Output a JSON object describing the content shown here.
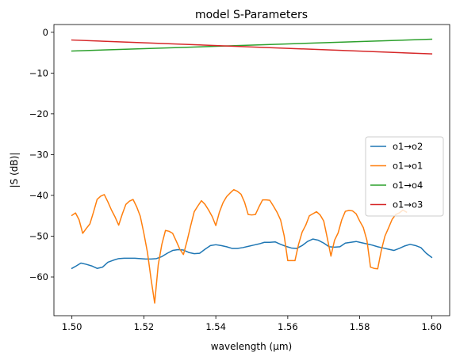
{
  "chart_data": {
    "type": "line",
    "title": "model S-Parameters",
    "xlabel": "wavelength (μm)",
    "ylabel": "|S (dB)|",
    "xlim": [
      1.495,
      1.605
    ],
    "ylim": [
      -69.5,
      1.9
    ],
    "xticks": [
      1.5,
      1.52,
      1.54,
      1.56,
      1.58,
      1.6
    ],
    "xtick_labels": [
      "1.50",
      "1.52",
      "1.54",
      "1.56",
      "1.58",
      "1.60"
    ],
    "yticks": [
      0,
      -10,
      -20,
      -30,
      -40,
      -50,
      -60
    ],
    "ytick_labels": [
      "0",
      "−10",
      "−20",
      "−30",
      "−40",
      "−50",
      "−60"
    ],
    "grid": false,
    "legend_position": "right",
    "series": [
      {
        "name": "o1→o2",
        "color": "#1f77b4",
        "points": [
          [
            1.5,
            -57.9
          ],
          [
            1.5012,
            -57.3
          ],
          [
            1.5025,
            -56.6
          ],
          [
            1.504,
            -56.9
          ],
          [
            1.5055,
            -57.3
          ],
          [
            1.507,
            -57.9
          ],
          [
            1.5085,
            -57.6
          ],
          [
            1.51,
            -56.4
          ],
          [
            1.5115,
            -55.9
          ],
          [
            1.513,
            -55.5
          ],
          [
            1.5145,
            -55.4
          ],
          [
            1.516,
            -55.4
          ],
          [
            1.5175,
            -55.4
          ],
          [
            1.519,
            -55.5
          ],
          [
            1.5205,
            -55.6
          ],
          [
            1.522,
            -55.6
          ],
          [
            1.5235,
            -55.5
          ],
          [
            1.525,
            -55.0
          ],
          [
            1.5265,
            -54.2
          ],
          [
            1.528,
            -53.5
          ],
          [
            1.5295,
            -53.3
          ],
          [
            1.531,
            -53.4
          ],
          [
            1.5325,
            -54.0
          ],
          [
            1.534,
            -54.3
          ],
          [
            1.5355,
            -54.2
          ],
          [
            1.537,
            -53.2
          ],
          [
            1.5385,
            -52.3
          ],
          [
            1.54,
            -52.1
          ],
          [
            1.5415,
            -52.3
          ],
          [
            1.543,
            -52.6
          ],
          [
            1.5445,
            -53.0
          ],
          [
            1.546,
            -53.0
          ],
          [
            1.5475,
            -52.8
          ],
          [
            1.549,
            -52.5
          ],
          [
            1.5505,
            -52.2
          ],
          [
            1.552,
            -51.9
          ],
          [
            1.5535,
            -51.5
          ],
          [
            1.555,
            -51.5
          ],
          [
            1.5565,
            -51.4
          ],
          [
            1.558,
            -52.0
          ],
          [
            1.5595,
            -52.5
          ],
          [
            1.561,
            -52.9
          ],
          [
            1.5625,
            -53.0
          ],
          [
            1.564,
            -52.3
          ],
          [
            1.5655,
            -51.3
          ],
          [
            1.567,
            -50.7
          ],
          [
            1.5685,
            -51.0
          ],
          [
            1.57,
            -51.7
          ],
          [
            1.5715,
            -52.6
          ],
          [
            1.573,
            -52.7
          ],
          [
            1.5745,
            -52.6
          ],
          [
            1.576,
            -51.7
          ],
          [
            1.5775,
            -51.5
          ],
          [
            1.579,
            -51.3
          ],
          [
            1.5805,
            -51.6
          ],
          [
            1.582,
            -51.9
          ],
          [
            1.5835,
            -52.2
          ],
          [
            1.585,
            -52.6
          ],
          [
            1.5865,
            -52.9
          ],
          [
            1.588,
            -53.2
          ],
          [
            1.5895,
            -53.5
          ],
          [
            1.591,
            -53.0
          ],
          [
            1.5925,
            -52.4
          ],
          [
            1.594,
            -52.0
          ],
          [
            1.5955,
            -52.3
          ],
          [
            1.597,
            -52.8
          ],
          [
            1.5985,
            -54.2
          ],
          [
            1.6,
            -55.2
          ]
        ]
      },
      {
        "name": "o1→o1",
        "color": "#ff7f0e",
        "points": [
          [
            1.5,
            -44.9
          ],
          [
            1.501,
            -44.3
          ],
          [
            1.502,
            -46.0
          ],
          [
            1.503,
            -49.3
          ],
          [
            1.504,
            -48.1
          ],
          [
            1.505,
            -47.0
          ],
          [
            1.506,
            -44.1
          ],
          [
            1.507,
            -41.0
          ],
          [
            1.508,
            -40.2
          ],
          [
            1.509,
            -39.8
          ],
          [
            1.51,
            -41.6
          ],
          [
            1.511,
            -43.6
          ],
          [
            1.512,
            -45.3
          ],
          [
            1.513,
            -47.3
          ],
          [
            1.514,
            -44.6
          ],
          [
            1.515,
            -42.2
          ],
          [
            1.516,
            -41.4
          ],
          [
            1.517,
            -41.0
          ],
          [
            1.518,
            -42.8
          ],
          [
            1.519,
            -45.1
          ],
          [
            1.52,
            -49.3
          ],
          [
            1.521,
            -54.0
          ],
          [
            1.522,
            -60.5
          ],
          [
            1.523,
            -66.4
          ],
          [
            1.524,
            -57.0
          ],
          [
            1.525,
            -52.0
          ],
          [
            1.526,
            -48.6
          ],
          [
            1.527,
            -48.8
          ],
          [
            1.528,
            -49.3
          ],
          [
            1.529,
            -51.2
          ],
          [
            1.53,
            -53.2
          ],
          [
            1.531,
            -54.5
          ],
          [
            1.532,
            -51.2
          ],
          [
            1.533,
            -47.5
          ],
          [
            1.534,
            -44.0
          ],
          [
            1.535,
            -42.6
          ],
          [
            1.536,
            -41.3
          ],
          [
            1.537,
            -42.2
          ],
          [
            1.538,
            -43.6
          ],
          [
            1.539,
            -45.2
          ],
          [
            1.54,
            -47.4
          ],
          [
            1.541,
            -44.1
          ],
          [
            1.542,
            -41.8
          ],
          [
            1.543,
            -40.3
          ],
          [
            1.544,
            -39.4
          ],
          [
            1.545,
            -38.6
          ],
          [
            1.546,
            -39.0
          ],
          [
            1.547,
            -39.7
          ],
          [
            1.548,
            -41.7
          ],
          [
            1.549,
            -44.7
          ],
          [
            1.55,
            -44.8
          ],
          [
            1.551,
            -44.7
          ],
          [
            1.552,
            -42.8
          ],
          [
            1.553,
            -41.1
          ],
          [
            1.554,
            -41.1
          ],
          [
            1.555,
            -41.2
          ],
          [
            1.556,
            -42.6
          ],
          [
            1.557,
            -44.1
          ],
          [
            1.558,
            -46.0
          ],
          [
            1.559,
            -49.9
          ],
          [
            1.56,
            -56.0
          ],
          [
            1.561,
            -56.0
          ],
          [
            1.562,
            -56.0
          ],
          [
            1.563,
            -52.0
          ],
          [
            1.564,
            -49.0
          ],
          [
            1.565,
            -47.3
          ],
          [
            1.566,
            -45.0
          ],
          [
            1.567,
            -44.5
          ],
          [
            1.568,
            -44.0
          ],
          [
            1.569,
            -44.8
          ],
          [
            1.57,
            -46.3
          ],
          [
            1.571,
            -50.5
          ],
          [
            1.572,
            -54.9
          ],
          [
            1.573,
            -51.0
          ],
          [
            1.574,
            -49.2
          ],
          [
            1.575,
            -46.0
          ],
          [
            1.576,
            -43.9
          ],
          [
            1.577,
            -43.7
          ],
          [
            1.578,
            -43.8
          ],
          [
            1.579,
            -44.5
          ],
          [
            1.58,
            -46.3
          ],
          [
            1.581,
            -47.9
          ],
          [
            1.582,
            -51.0
          ],
          [
            1.583,
            -57.6
          ],
          [
            1.584,
            -57.9
          ],
          [
            1.585,
            -58.0
          ],
          [
            1.586,
            -53.5
          ],
          [
            1.587,
            -50.0
          ],
          [
            1.588,
            -48.0
          ],
          [
            1.589,
            -45.9
          ],
          [
            1.59,
            -44.7
          ],
          [
            1.591,
            -44.3
          ],
          [
            1.592,
            -43.6
          ],
          [
            1.593,
            -44.1
          ]
        ]
      },
      {
        "name": "o1→o4",
        "color": "#2ca02c",
        "points": [
          [
            1.5,
            -4.6
          ],
          [
            1.6,
            -1.7
          ]
        ]
      },
      {
        "name": "o1→o3",
        "color": "#d62728",
        "points": [
          [
            1.5,
            -1.9
          ],
          [
            1.6,
            -5.3
          ]
        ]
      }
    ]
  }
}
